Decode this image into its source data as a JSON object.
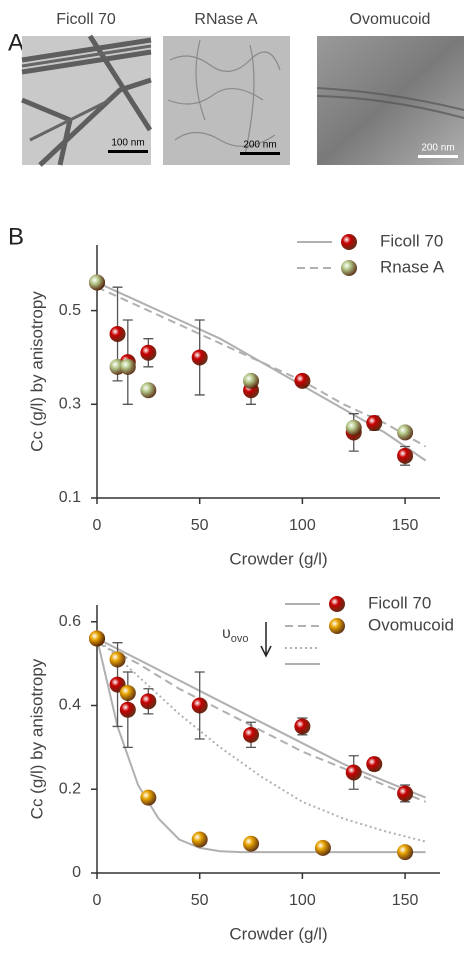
{
  "panel_a": {
    "label": "A",
    "images": [
      {
        "title": "Ficoll 70",
        "scale_bar": "100 nm"
      },
      {
        "title": "RNase A",
        "scale_bar": "200 nm"
      },
      {
        "title": "Ovomucoid",
        "scale_bar": "200 nm"
      }
    ]
  },
  "panel_b": {
    "label": "B"
  },
  "chart_data": [
    {
      "type": "scatter",
      "xlabel": "Crowder (g/l)",
      "ylabel": "Cc (g/l) by anisotropy",
      "xlim": [
        0,
        167
      ],
      "ylim": [
        0.1,
        0.64
      ],
      "xticks": [
        0,
        50,
        100,
        150
      ],
      "yticks": [
        0.1,
        0.3,
        0.5
      ],
      "series": [
        {
          "name": "Ficoll 70",
          "color": "#c80000",
          "line_style": "solid",
          "x": [
            0,
            10,
            15,
            25,
            50,
            75,
            100,
            125,
            135,
            150
          ],
          "values": [
            0.56,
            0.45,
            0.39,
            0.41,
            0.4,
            0.33,
            0.35,
            0.24,
            0.26,
            0.19
          ],
          "errors": [
            0,
            0.1,
            0.09,
            0.03,
            0.08,
            0.03,
            0.01,
            0.04,
            0.015,
            0.02
          ]
        },
        {
          "name": "Rnase A",
          "color": "#b5c98a",
          "line_style": "dashed",
          "x": [
            0,
            10,
            15,
            25,
            75,
            125,
            150
          ],
          "values": [
            0.56,
            0.38,
            0.38,
            0.33,
            0.35,
            0.25,
            0.24
          ]
        }
      ],
      "fits": [
        {
          "style": "solid",
          "x": [
            0,
            20,
            40,
            60,
            80,
            100,
            120,
            140,
            160
          ],
          "values": [
            0.56,
            0.52,
            0.48,
            0.44,
            0.39,
            0.34,
            0.29,
            0.24,
            0.18
          ]
        },
        {
          "style": "dashed",
          "x": [
            0,
            20,
            40,
            60,
            80,
            100,
            120,
            140,
            160
          ],
          "values": [
            0.55,
            0.51,
            0.47,
            0.43,
            0.39,
            0.35,
            0.3,
            0.26,
            0.21
          ]
        }
      ]
    },
    {
      "type": "scatter",
      "xlabel": "Crowder (g/l)",
      "ylabel": "Cc (g/l) by anisotropy",
      "xlim": [
        0,
        167
      ],
      "ylim": [
        0,
        0.64
      ],
      "xticks": [
        0,
        50,
        100,
        150
      ],
      "yticks": [
        0,
        0.2,
        0.4,
        0.6
      ],
      "annotation": {
        "symbol": "υ",
        "subscript": "ovo"
      },
      "series": [
        {
          "name": "Ficoll 70",
          "color": "#c80000",
          "line_style": "solid",
          "x": [
            0,
            10,
            15,
            25,
            50,
            75,
            100,
            125,
            135,
            150
          ],
          "values": [
            0.56,
            0.45,
            0.39,
            0.41,
            0.4,
            0.33,
            0.35,
            0.24,
            0.26,
            0.19
          ],
          "errors": [
            0,
            0.1,
            0.09,
            0.03,
            0.08,
            0.03,
            0.02,
            0.04,
            0.015,
            0.02
          ]
        },
        {
          "name": "Ovomucoid",
          "color": "#e8a400",
          "line_style": "dashed",
          "x": [
            0,
            10,
            15,
            25,
            50,
            75,
            110,
            150
          ],
          "values": [
            0.56,
            0.51,
            0.43,
            0.18,
            0.08,
            0.07,
            0.06,
            0.05
          ]
        }
      ],
      "fits": [
        {
          "style": "solid",
          "x": [
            0,
            20,
            40,
            60,
            80,
            100,
            120,
            140,
            160
          ],
          "values": [
            0.56,
            0.51,
            0.46,
            0.41,
            0.36,
            0.31,
            0.26,
            0.22,
            0.18
          ]
        },
        {
          "style": "dashed",
          "x": [
            0,
            20,
            40,
            60,
            80,
            100,
            120,
            140,
            160
          ],
          "values": [
            0.55,
            0.5,
            0.44,
            0.39,
            0.34,
            0.29,
            0.25,
            0.21,
            0.17
          ]
        },
        {
          "style": "dotted",
          "x": [
            0,
            20,
            40,
            60,
            80,
            100,
            120,
            140,
            160
          ],
          "values": [
            0.56,
            0.47,
            0.38,
            0.3,
            0.23,
            0.17,
            0.13,
            0.1,
            0.075
          ]
        },
        {
          "style": "solid",
          "x": [
            0,
            10,
            20,
            30,
            40,
            50,
            60,
            70,
            160
          ],
          "values": [
            0.56,
            0.35,
            0.21,
            0.13,
            0.08,
            0.06,
            0.052,
            0.05,
            0.05
          ]
        }
      ]
    }
  ]
}
